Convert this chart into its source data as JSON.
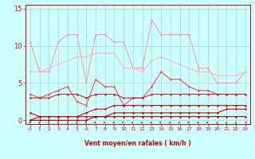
{
  "x": [
    0,
    1,
    2,
    3,
    4,
    5,
    6,
    7,
    8,
    9,
    10,
    11,
    12,
    13,
    14,
    15,
    16,
    17,
    18,
    19,
    20,
    21,
    22,
    23
  ],
  "line1_rafales": [
    10.5,
    6.5,
    6.5,
    10.5,
    11.5,
    11.5,
    5.0,
    11.5,
    11.5,
    10.5,
    10.5,
    7.0,
    7.0,
    13.5,
    11.5,
    11.5,
    11.5,
    11.5,
    7.0,
    7.0,
    5.0,
    5.0,
    5.0,
    6.5
  ],
  "line2_smooth": [
    6.5,
    6.5,
    7.0,
    7.5,
    8.0,
    8.5,
    8.5,
    9.0,
    9.0,
    9.0,
    7.0,
    7.0,
    6.5,
    8.0,
    8.5,
    8.0,
    7.5,
    7.0,
    6.5,
    6.5,
    6.0,
    6.0,
    6.0,
    6.5
  ],
  "line3_mean": [
    3.5,
    3.0,
    3.5,
    4.0,
    4.5,
    2.5,
    2.0,
    5.5,
    4.5,
    4.5,
    2.0,
    3.0,
    3.0,
    4.5,
    6.5,
    5.5,
    5.5,
    4.5,
    4.0,
    4.0,
    3.5,
    3.5,
    3.5,
    3.5
  ],
  "line4_lower": [
    3.0,
    3.0,
    3.0,
    3.5,
    3.5,
    3.5,
    3.0,
    3.5,
    3.5,
    3.5,
    3.0,
    3.0,
    3.0,
    3.5,
    3.5,
    3.5,
    3.5,
    3.5,
    3.5,
    3.5,
    3.5,
    3.5,
    3.5,
    3.5
  ],
  "line5_low1": [
    1.0,
    0.5,
    0.5,
    0.5,
    0.5,
    0.5,
    1.0,
    1.5,
    1.5,
    2.0,
    2.0,
    2.0,
    2.0,
    2.0,
    2.0,
    2.0,
    2.0,
    2.0,
    2.0,
    2.0,
    2.0,
    2.0,
    2.0,
    2.0
  ],
  "line6_low2": [
    0.0,
    0.5,
    0.5,
    0.5,
    0.5,
    0.5,
    0.5,
    0.5,
    0.5,
    1.0,
    1.0,
    1.0,
    1.0,
    1.0,
    1.0,
    1.0,
    1.0,
    1.0,
    1.0,
    1.0,
    1.0,
    1.5,
    1.5,
    1.5
  ],
  "line7_base": [
    0.0,
    0.0,
    0.0,
    0.0,
    0.0,
    0.0,
    0.0,
    0.5,
    0.5,
    0.5,
    0.5,
    0.5,
    0.5,
    0.5,
    0.5,
    0.5,
    0.5,
    0.5,
    0.5,
    0.5,
    0.5,
    0.5,
    0.5,
    0.5
  ],
  "color_light1": "#FF9999",
  "color_light2": "#FFB3B3",
  "color_medium1": "#FF4444",
  "color_medium2": "#CC2222",
  "color_dark1": "#DD0000",
  "color_dark2": "#CC0000",
  "color_darkest": "#AA0000",
  "bg_color": "#CCFFFF",
  "grid_color": "#AADDDD",
  "axis_color": "#CC0000",
  "xlabel_text": "Vent moyen/en rafales ( km/h )",
  "ytick_labels": [
    "0",
    "5",
    "10",
    "15"
  ],
  "ytick_vals": [
    0,
    5,
    10,
    15
  ],
  "ylim_plot": [
    -0.5,
    15.5
  ],
  "arrow_angles": [
    225,
    202,
    202,
    202,
    180,
    202,
    247,
    247,
    247,
    247,
    270,
    247,
    247,
    247,
    270,
    247,
    247,
    270,
    247,
    247,
    180,
    180,
    180,
    90
  ]
}
